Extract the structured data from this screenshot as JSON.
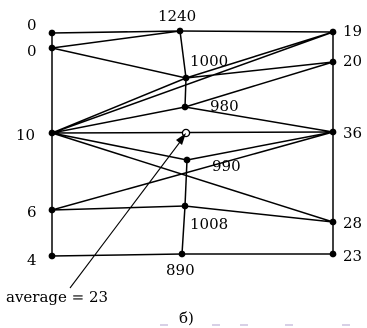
{
  "figure": {
    "caption": "б)",
    "annotation": "average = 23",
    "labels": {
      "l_top": "0",
      "l_2": "0",
      "l_3": "10",
      "l_4": "6",
      "l_bottom": "4",
      "r_top": "19",
      "r_2": "20",
      "r_3": "36",
      "r_4": "28",
      "r_bottom": "23",
      "m_top": "1240",
      "m_1000": "1000",
      "m_980": "980",
      "m_990": "990",
      "m_1008": "1008",
      "m_bottom": "890"
    }
  }
}
